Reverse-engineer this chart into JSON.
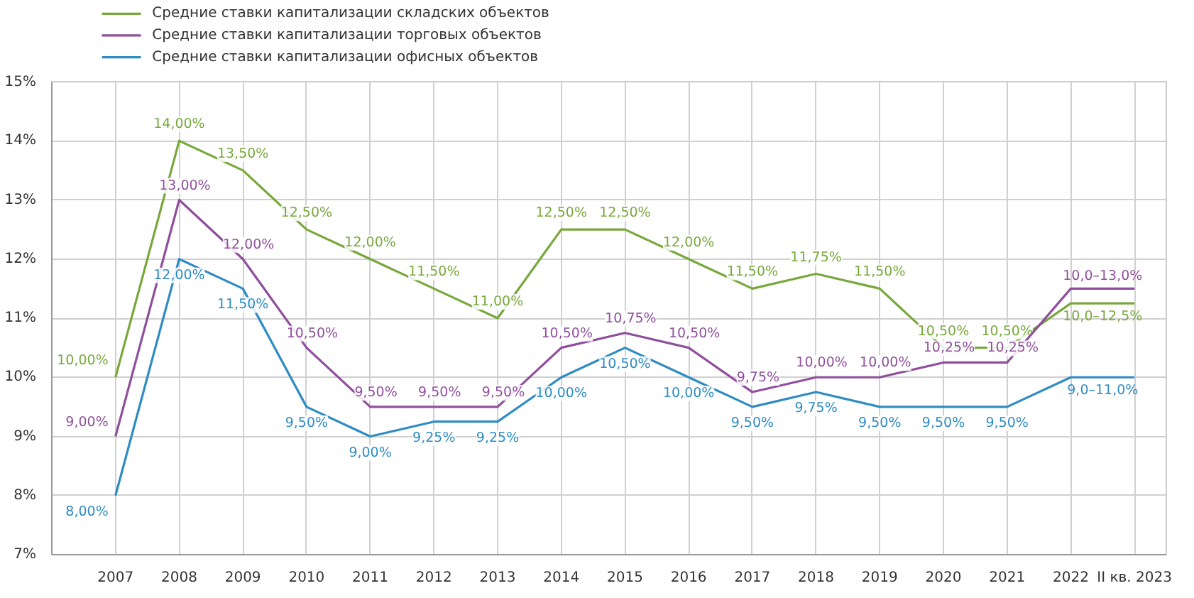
{
  "chart_data": {
    "type": "line",
    "categories": [
      "2007",
      "2008",
      "2009",
      "2010",
      "2011",
      "2012",
      "2013",
      "2014",
      "2015",
      "2016",
      "2017",
      "2018",
      "2019",
      "2020",
      "2021",
      "2022",
      "II кв. 2023"
    ],
    "series": [
      {
        "name": "Средние ставки капитализации складских объектов",
        "color": "#78a83c",
        "values": [
          10,
          14,
          13.5,
          12.5,
          12,
          11.5,
          11,
          12.5,
          12.5,
          12,
          11.5,
          11.75,
          11.5,
          10.5,
          10.5,
          11.25,
          11.25
        ],
        "value_labels": [
          "10,00%",
          "14,00%",
          "13,50%",
          "12,50%",
          "12,00%",
          "11,50%",
          "11,00%",
          "12,50%",
          "12,50%",
          "12,00%",
          "11,50%",
          "11,75%",
          "11,50%",
          "10,50%",
          "10,50%",
          null,
          null
        ]
      },
      {
        "name": "Средние ставки капитализации торговых объектов",
        "color": "#8f4f9c",
        "values": [
          9,
          13,
          12,
          10.5,
          9.5,
          9.5,
          9.5,
          10.5,
          10.75,
          10.5,
          9.75,
          10,
          10,
          10.25,
          10.25,
          11.5,
          11.5
        ],
        "value_labels": [
          "9,00%",
          "13,00%",
          "12,00%",
          "10,50%",
          "9,50%",
          "9,50%",
          "9,50%",
          "10,50%",
          "10,75%",
          "10,50%",
          "9,75%",
          "10,00%",
          "10,00%",
          "10,25%",
          "10,25%",
          null,
          null
        ]
      },
      {
        "name": "Средние ставки капитализации офисных объектов",
        "color": "#2f8cc2",
        "values": [
          8,
          12,
          11.5,
          9.5,
          9,
          9.25,
          9.25,
          10,
          10.5,
          10,
          9.5,
          9.75,
          9.5,
          9.5,
          9.5,
          10,
          10
        ],
        "value_labels": [
          "8,00%",
          "12,00%",
          "11,50%",
          "9,50%",
          "9,00%",
          "9,25%",
          "9,25%",
          "10,00%",
          "10,50%",
          "10,00%",
          "9,50%",
          "9,75%",
          "9,50%",
          "9,50%",
          "9,50%",
          null,
          null
        ]
      }
    ],
    "annotations": [
      {
        "text": "10,0–12,5%",
        "x": "2022",
        "y": 11.25
      },
      {
        "text": "10,0–13,0%",
        "x": "2022",
        "y": 11.5
      },
      {
        "text": "9,0–11,0%",
        "x": "2022",
        "y": 10
      }
    ],
    "ylim": [
      7,
      15
    ],
    "yticks": [
      {
        "value": 7,
        "label": "7%"
      },
      {
        "value": 8,
        "label": "8%"
      },
      {
        "value": 9,
        "label": "9%"
      },
      {
        "value": 10,
        "label": "10%"
      },
      {
        "value": 11,
        "label": "11%"
      },
      {
        "value": 12,
        "label": "12%"
      },
      {
        "value": 13,
        "label": "13%"
      },
      {
        "value": 14,
        "label": "14%"
      },
      {
        "value": 15,
        "label": "15%"
      }
    ],
    "grid": true,
    "legend": "top left",
    "marker": "none",
    "line_style": "solid"
  }
}
